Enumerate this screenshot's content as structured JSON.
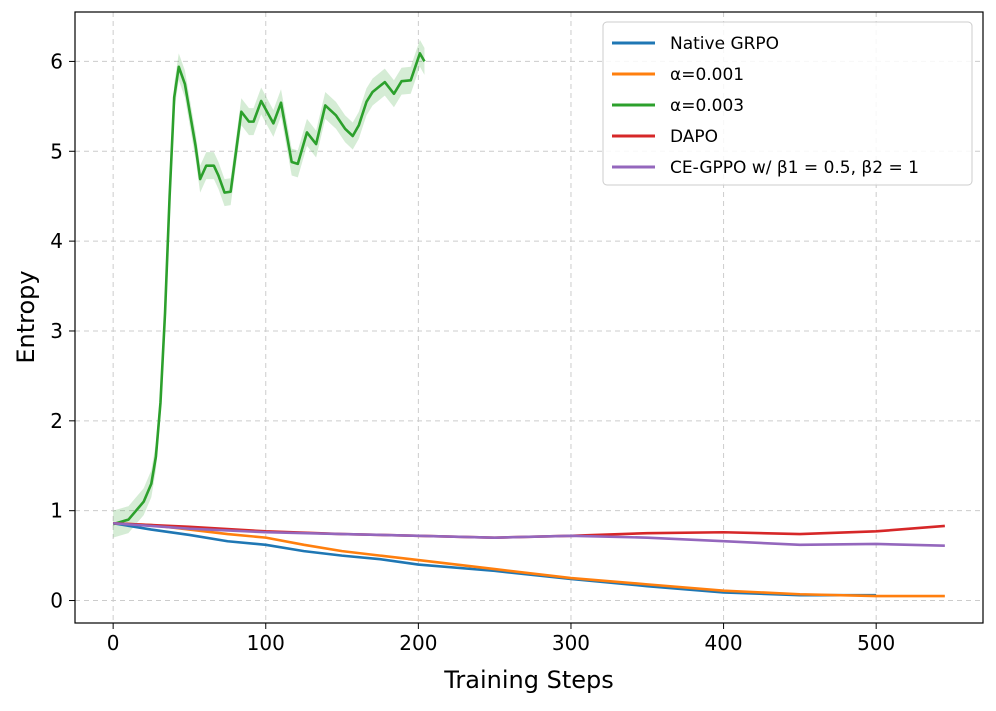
{
  "chart_data": {
    "type": "line",
    "title": "",
    "xlabel": "Training Steps",
    "ylabel": "Entropy",
    "xlim": [
      -25,
      570
    ],
    "ylim": [
      -0.25,
      6.55
    ],
    "xticks": [
      0,
      100,
      200,
      300,
      400,
      500
    ],
    "yticks": [
      0,
      1,
      2,
      3,
      4,
      5,
      6
    ],
    "grid": true,
    "legend_position": "top-right",
    "series": [
      {
        "name": "Native GRPO",
        "color": "#1f77b4",
        "x": [
          0,
          25,
          50,
          75,
          100,
          125,
          150,
          175,
          200,
          250,
          300,
          350,
          400,
          450,
          500
        ],
        "y": [
          0.86,
          0.79,
          0.73,
          0.66,
          0.62,
          0.55,
          0.5,
          0.46,
          0.4,
          0.33,
          0.24,
          0.16,
          0.09,
          0.06,
          0.06
        ]
      },
      {
        "name": "α=0.001",
        "color": "#ff7f0e",
        "x": [
          0,
          25,
          50,
          75,
          100,
          125,
          150,
          175,
          200,
          250,
          300,
          350,
          400,
          450,
          500,
          545
        ],
        "y": [
          0.86,
          0.84,
          0.79,
          0.74,
          0.7,
          0.62,
          0.55,
          0.5,
          0.45,
          0.35,
          0.25,
          0.18,
          0.11,
          0.07,
          0.05,
          0.05
        ]
      },
      {
        "name": "α=0.003",
        "color": "#2ca02c",
        "band": 0.15,
        "x": [
          0,
          10,
          15,
          20,
          25,
          28,
          31,
          34,
          37,
          40,
          43,
          47,
          54,
          57,
          61,
          66,
          69,
          73,
          77,
          84,
          89,
          92,
          97,
          105,
          110,
          117,
          121,
          127,
          133,
          139,
          146,
          152,
          157,
          161,
          166,
          170,
          178,
          184,
          189,
          195,
          201,
          204
        ],
        "y": [
          0.85,
          0.9,
          1.0,
          1.1,
          1.3,
          1.6,
          2.2,
          3.2,
          4.5,
          5.6,
          5.94,
          5.75,
          5.06,
          4.69,
          4.84,
          4.84,
          4.73,
          4.54,
          4.55,
          5.44,
          5.33,
          5.33,
          5.56,
          5.31,
          5.54,
          4.88,
          4.86,
          5.21,
          5.08,
          5.51,
          5.4,
          5.25,
          5.17,
          5.29,
          5.55,
          5.66,
          5.77,
          5.64,
          5.78,
          5.79,
          6.09,
          6.0
        ]
      },
      {
        "name": "DAPO",
        "color": "#d62728",
        "x": [
          0,
          50,
          100,
          150,
          200,
          250,
          300,
          350,
          400,
          450,
          500,
          545
        ],
        "y": [
          0.86,
          0.82,
          0.77,
          0.74,
          0.72,
          0.7,
          0.72,
          0.75,
          0.76,
          0.74,
          0.77,
          0.83
        ]
      },
      {
        "name": "CE-GPPO w/ β1 = 0.5,  β2 = 1",
        "color": "#9467bd",
        "x": [
          0,
          50,
          100,
          150,
          200,
          250,
          300,
          350,
          400,
          450,
          500,
          545
        ],
        "y": [
          0.86,
          0.8,
          0.76,
          0.74,
          0.72,
          0.7,
          0.72,
          0.7,
          0.66,
          0.62,
          0.63,
          0.61
        ]
      }
    ]
  }
}
